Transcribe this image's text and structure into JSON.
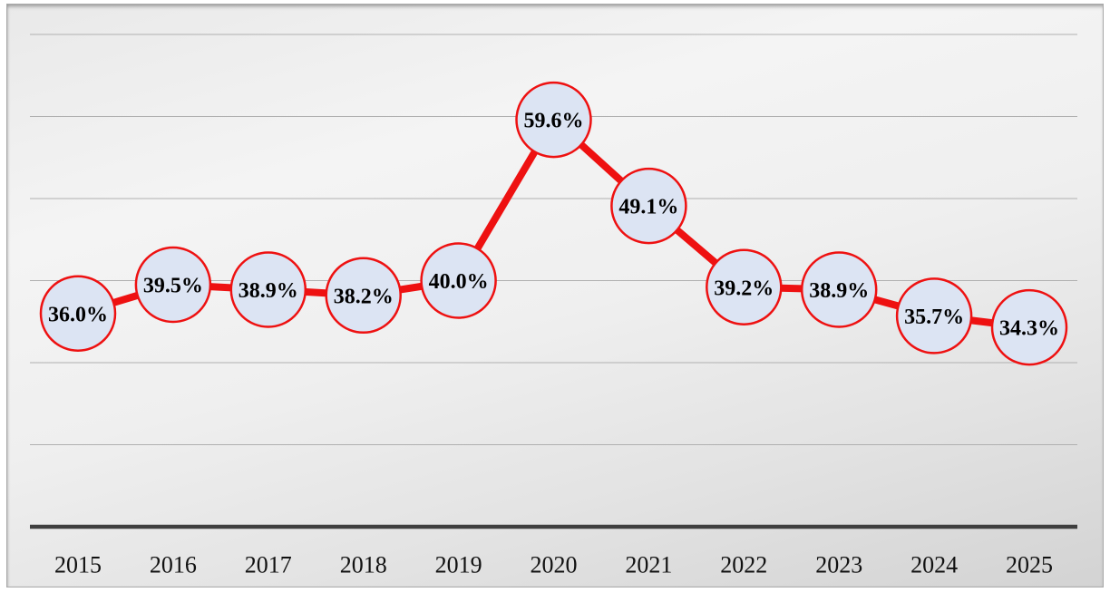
{
  "chart_data": {
    "type": "line",
    "title": "",
    "xlabel": "",
    "ylabel": "",
    "categories": [
      "2015",
      "2016",
      "2017",
      "2018",
      "2019",
      "2020",
      "2021",
      "2022",
      "2023",
      "2024",
      "2025"
    ],
    "values": [
      36.0,
      39.5,
      38.9,
      38.2,
      40.0,
      59.6,
      49.1,
      39.2,
      38.9,
      35.7,
      34.3
    ],
    "labels": [
      "36.0%",
      "39.5%",
      "38.9%",
      "38.2%",
      "40.0%",
      "59.6%",
      "49.1%",
      "39.2%",
      "38.9%",
      "35.7%",
      "34.3%"
    ],
    "ylim": [
      10,
      70
    ],
    "gridline_step": 10,
    "grid": true,
    "legend": "none",
    "colors": {
      "series_line": "#ee1111",
      "marker_fill": "#dce4f3",
      "marker_stroke": "#ee1111",
      "gridline": "#b0b0b0",
      "axis_line": "#3f3f3f",
      "data_label": "#000000",
      "year_label": "#111111",
      "frame_border": "#a9a9a9"
    }
  }
}
